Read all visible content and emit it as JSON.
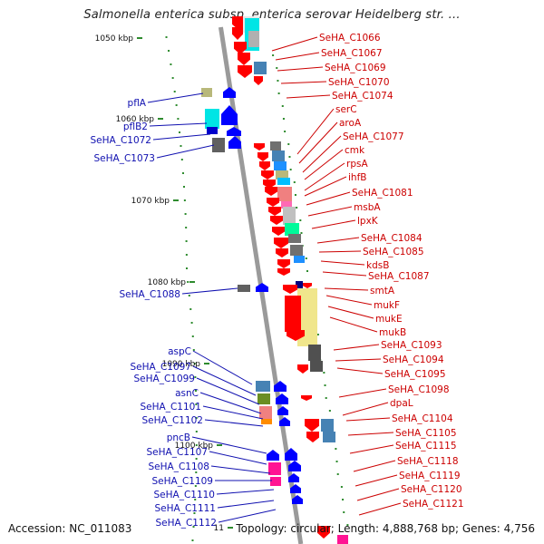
{
  "title": "Salmonella enterica subsp. enterica serovar Heidelberg str. ...",
  "footer": {
    "accession": "Accession: NC_011083",
    "summary": "Topology: circular; Length: 4,888,768 bp; Genes: 4,756"
  },
  "colors": {
    "left_label": "#1010b0",
    "right_label": "#cc0000",
    "tick": "#2e8b2e",
    "backbone": "#9a9a9a"
  },
  "scale_labels": [
    "1050 kbp",
    "1060 kbp",
    "1070 kbp",
    "1080 kbp",
    "1090 kbp",
    "1100 kbp",
    "11"
  ],
  "left_labels": [
    "pflA",
    "pflB2",
    "SeHA_C1072",
    "SeHA_C1073",
    "SeHA_C1088",
    "aspC",
    "SeHA_C1097",
    "SeHA_C1099",
    "asnC",
    "SeHA_C1101",
    "SeHA_C1102",
    "pncB",
    "SeHA_C1107",
    "SeHA_C1108",
    "SeHA_C1109",
    "SeHA_C1110",
    "SeHA_C1111",
    "SeHA_C1112"
  ],
  "right_labels": [
    "SeHA_C1066",
    "SeHA_C1067",
    "SeHA_C1069",
    "SeHA_C1070",
    "SeHA_C1074",
    "serC",
    "aroA",
    "SeHA_C1077",
    "cmk",
    "rpsA",
    "ihfB",
    "SeHA_C1081",
    "msbA",
    "lpxK",
    "SeHA_C1084",
    "SeHA_C1085",
    "kdsB",
    "SeHA_C1087",
    "smtA",
    "mukF",
    "mukE",
    "mukB",
    "SeHA_C1093",
    "SeHA_C1094",
    "SeHA_C1095",
    "SeHA_C1098",
    "dpaL",
    "SeHA_C1104",
    "SeHA_C1105",
    "SeHA_C1115",
    "SeHA_C1118",
    "SeHA_C1119",
    "SeHA_C1120",
    "SeHA_C1121"
  ]
}
